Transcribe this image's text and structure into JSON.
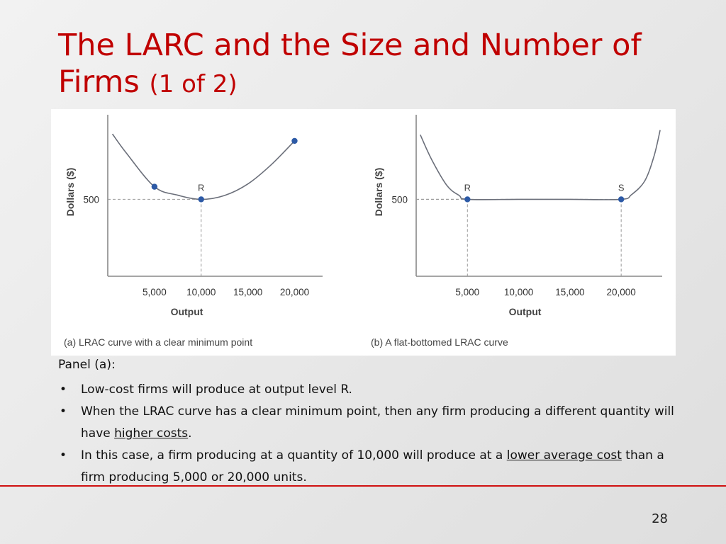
{
  "slide": {
    "title": "The LARC and the Size and Number of Firms",
    "title_suffix": "(1 of 2)",
    "page_number": "28"
  },
  "notes": {
    "heading": "Panel (a):",
    "bullets": [
      {
        "text": "Low-cost firms will produce at output level R."
      },
      {
        "pre": "When the LRAC curve has a clear minimum point, then any firm producing a different quantity will have ",
        "link": "higher costs",
        "post": "."
      },
      {
        "pre": "In this case, a firm producing at a quantity of 10,000 will produce at a ",
        "link": "lower average cost",
        "post": " than a firm producing 5,000 or 20,000 units."
      }
    ]
  },
  "colors": {
    "title": "#c00000",
    "point": "#2d5aa6",
    "axis": "#888888",
    "rule": "#d01010"
  },
  "chart_data": [
    {
      "type": "line",
      "caption": "(a) LRAC curve with a clear minimum point",
      "xlabel": "Output",
      "ylabel": "Dollars ($)",
      "xticks": [
        5000,
        10000,
        15000,
        20000
      ],
      "xtick_labels": [
        "5,000",
        "10,000",
        "15,000",
        "20,000"
      ],
      "yticks": [
        500
      ],
      "ytick_labels": [
        "500"
      ],
      "xlim": [
        0,
        23000
      ],
      "ylim": [
        0,
        1050
      ],
      "series": [
        {
          "x": [
            500,
            2000,
            5000,
            7500,
            10000,
            12500,
            15000,
            17500,
            20000
          ],
          "y": [
            925,
            800,
            582,
            527,
            500,
            525,
            600,
            725,
            880
          ]
        }
      ],
      "points": [
        {
          "x": 5000,
          "y": 582,
          "label": ""
        },
        {
          "x": 10000,
          "y": 500,
          "label": "R"
        },
        {
          "x": 20000,
          "y": 880,
          "label": ""
        }
      ],
      "guides": [
        {
          "x": 10000,
          "y": 500
        }
      ]
    },
    {
      "type": "line",
      "caption": "(b) A flat-bottomed LRAC curve",
      "xlabel": "Output",
      "ylabel": "Dollars ($)",
      "xticks": [
        5000,
        10000,
        15000,
        20000
      ],
      "xtick_labels": [
        "5,000",
        "10,000",
        "15,000",
        "20,000"
      ],
      "yticks": [
        500
      ],
      "ytick_labels": [
        "500"
      ],
      "xlim": [
        0,
        24000
      ],
      "ylim": [
        0,
        1050
      ],
      "series": [
        {
          "x": [
            400,
            1500,
            3000,
            4200,
            5000,
            10000,
            15000,
            20000,
            21000,
            22300,
            23200,
            23800
          ],
          "y": [
            920,
            760,
            590,
            525,
            500,
            500,
            500,
            500,
            530,
            620,
            780,
            950
          ]
        }
      ],
      "points": [
        {
          "x": 5000,
          "y": 500,
          "label": "R"
        },
        {
          "x": 20000,
          "y": 500,
          "label": "S"
        }
      ],
      "guides": [
        {
          "x": 5000,
          "y": 500
        },
        {
          "x": 20000,
          "y": 500
        }
      ]
    }
  ]
}
